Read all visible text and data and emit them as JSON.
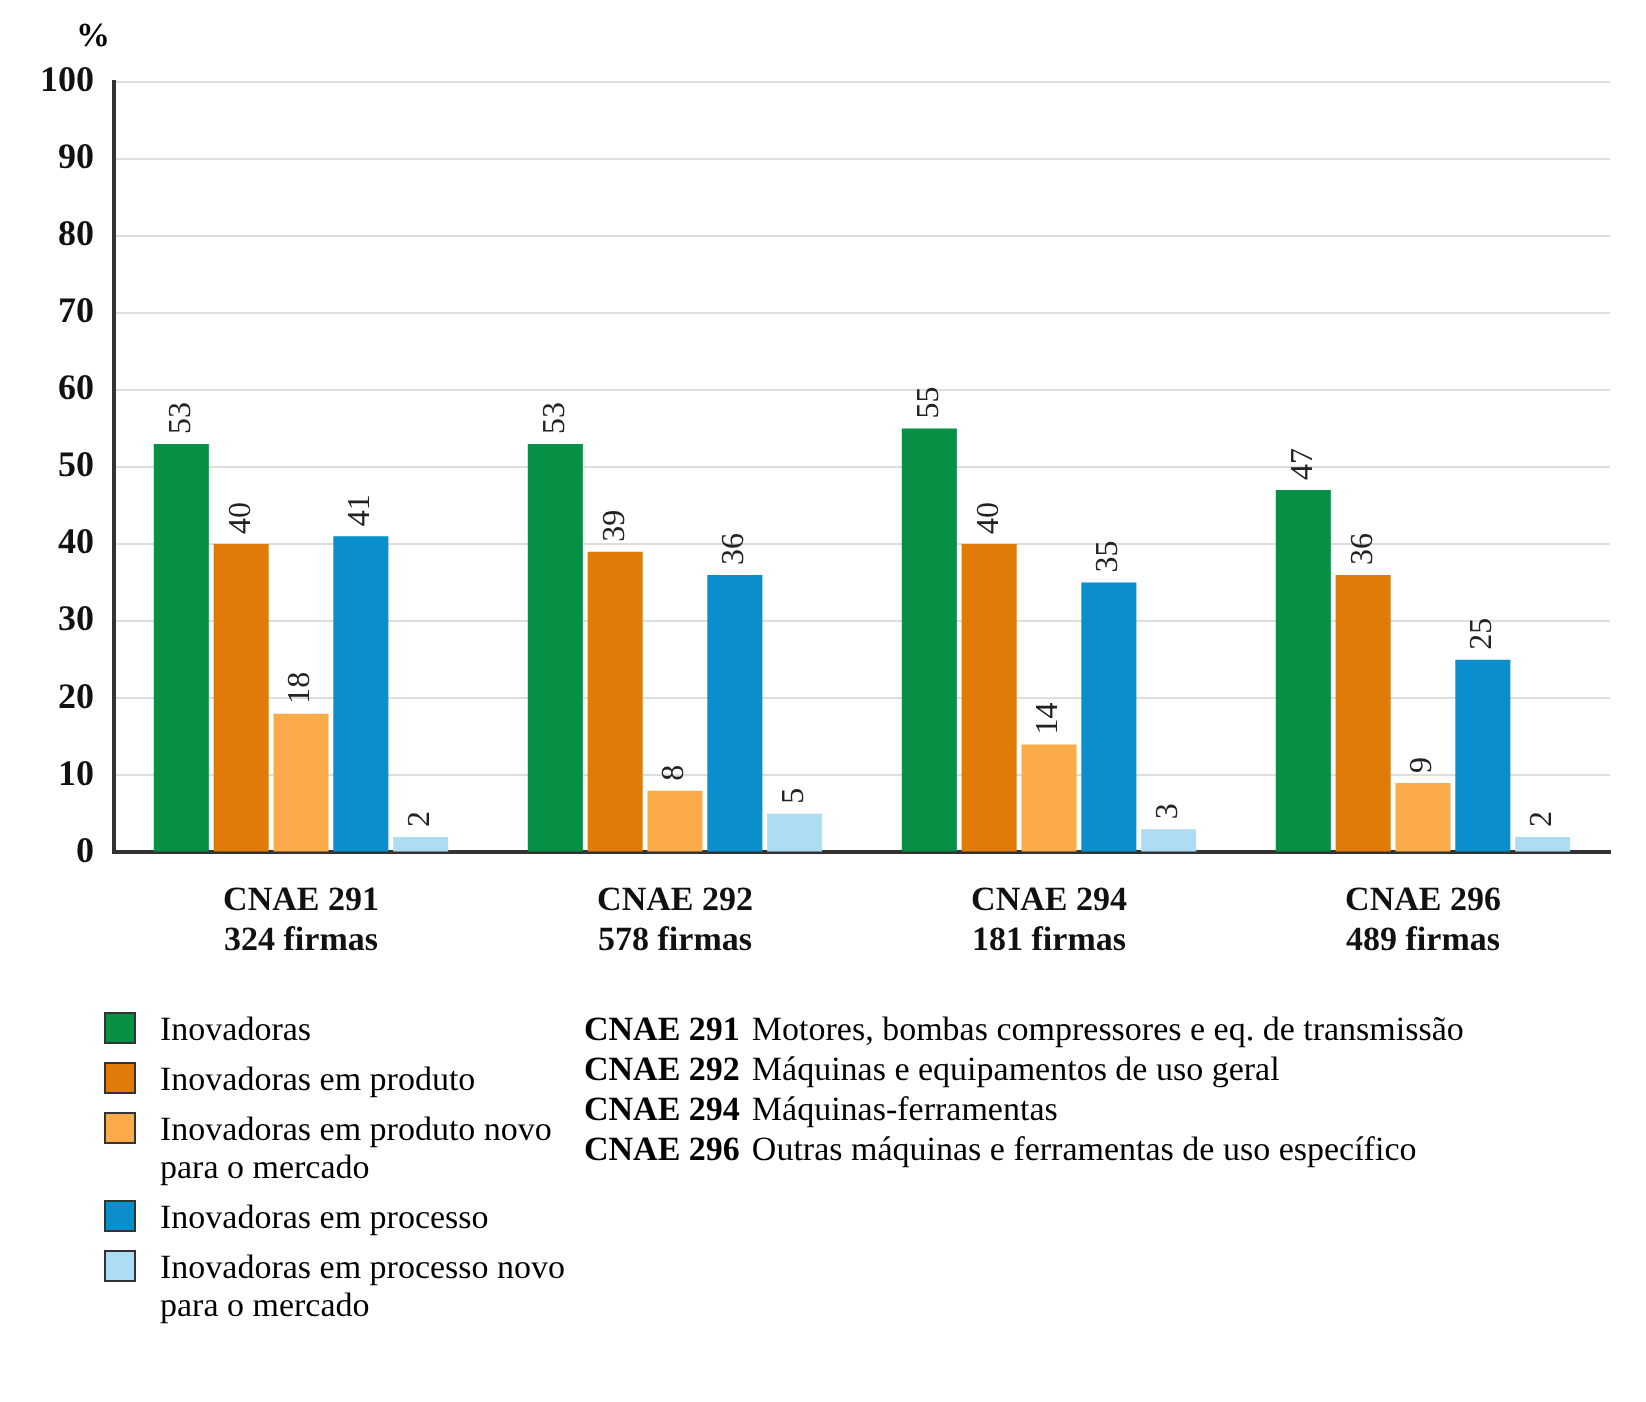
{
  "chart_data": {
    "type": "bar",
    "ylabel": "%",
    "categories": [
      "CNAE 291\n324 firmas",
      "CNAE 292\n578 firmas",
      "CNAE 294\n181 firmas",
      "CNAE 296\n489 firmas"
    ],
    "series": [
      {
        "name": "Inovadoras",
        "color": "#068f45",
        "values": [
          53,
          53,
          55,
          47
        ]
      },
      {
        "name": "Inovadoras em produto",
        "color": "#e07b08",
        "values": [
          40,
          39,
          40,
          36
        ]
      },
      {
        "name": "Inovadoras em produto novo para o mercado",
        "color": "#fbab4a",
        "values": [
          18,
          8,
          14,
          9
        ]
      },
      {
        "name": "Inovadoras em processo",
        "color": "#0a8fcc",
        "values": [
          41,
          36,
          35,
          25
        ]
      },
      {
        "name": "Inovadoras em processo novo para o mercado",
        "color": "#aedcf2",
        "values": [
          2,
          5,
          3,
          2
        ]
      }
    ],
    "ylim": [
      0,
      100
    ],
    "yticks": [
      0,
      10,
      20,
      30,
      40,
      50,
      60,
      70,
      80,
      90,
      100
    ],
    "grid": "y",
    "legend": "bottom left",
    "data_labels": true,
    "annotations": [
      "CNAE 291 Motores, bombas compressores e eq. de transmissão",
      "CNAE 292 Máquinas e equipamentos de uso geral",
      "CNAE 294 Máquinas-ferramentas",
      "CNAE 296 Outras máquinas e ferramentas de uso específico"
    ]
  }
}
